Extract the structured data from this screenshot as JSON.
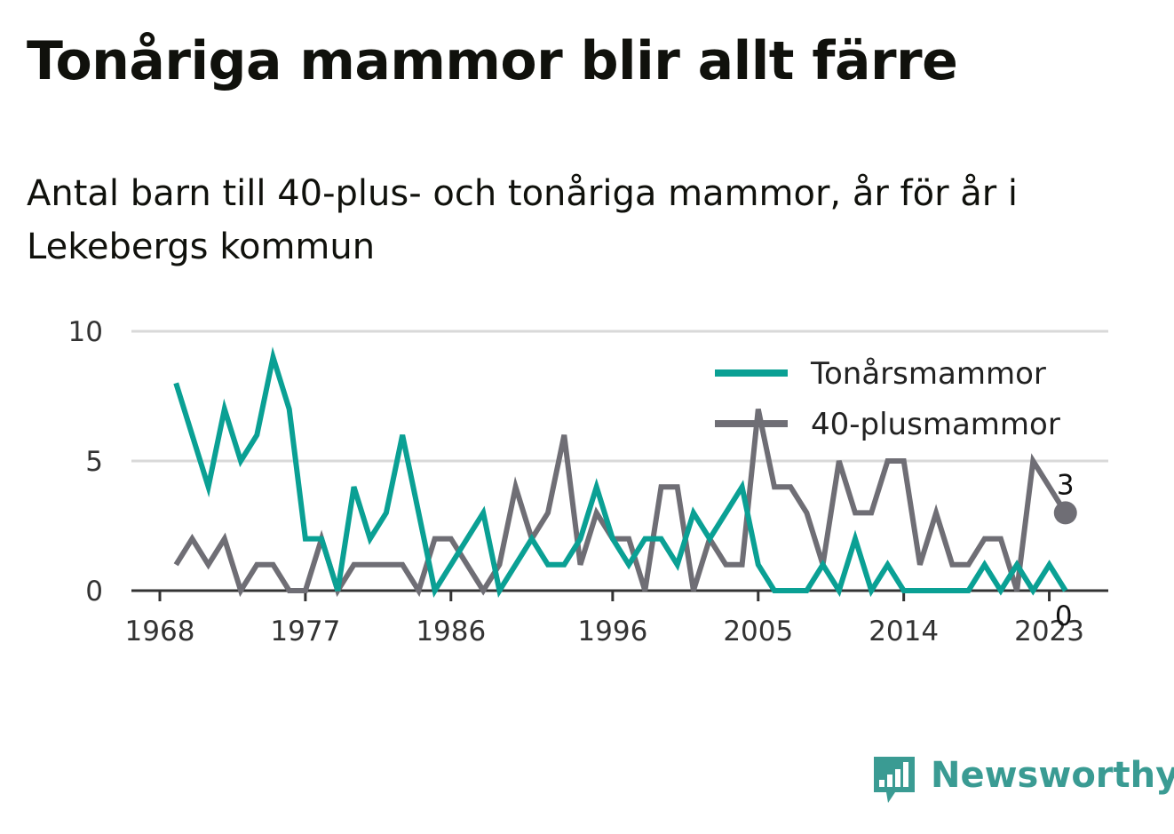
{
  "title": "Tonåriga mammor blir allt färre",
  "subtitle": "Antal barn till 40-plus- och tonåriga mammor, år för år i Lekebergs kommun",
  "brand": "Newsworthy",
  "colors": {
    "teen": "#0aa094",
    "forty": "#6f6e75",
    "grid": "#d9d9d9",
    "axis": "#333333",
    "brand": "#3a9b93"
  },
  "chart_data": {
    "type": "line",
    "title": "Tonåriga mammor blir allt färre",
    "subtitle": "Antal barn till 40-plus- och tonåriga mammor, år för år i Lekebergs kommun",
    "x": [
      1969,
      1970,
      1971,
      1972,
      1973,
      1974,
      1975,
      1976,
      1977,
      1978,
      1979,
      1980,
      1981,
      1982,
      1983,
      1984,
      1985,
      1986,
      1987,
      1988,
      1989,
      1990,
      1991,
      1992,
      1993,
      1994,
      1995,
      1996,
      1997,
      1998,
      1999,
      2000,
      2001,
      2002,
      2003,
      2004,
      2005,
      2006,
      2007,
      2008,
      2009,
      2010,
      2011,
      2012,
      2013,
      2014,
      2015,
      2016,
      2017,
      2018,
      2019,
      2020,
      2021,
      2022,
      2023,
      2024
    ],
    "xticks": [
      "1968",
      "1977",
      "1986",
      "1996",
      "2005",
      "2014",
      "2023"
    ],
    "yticks": [
      "0",
      "5",
      "10"
    ],
    "ylim": [
      0,
      10
    ],
    "grid": true,
    "legend_position": "top-right",
    "series": [
      {
        "name": "Tonårsmammor",
        "color": "#0aa094",
        "values": [
          8,
          6,
          4,
          7,
          5,
          6,
          9,
          7,
          2,
          2,
          0,
          4,
          2,
          3,
          6,
          3,
          0,
          1,
          2,
          3,
          0,
          1,
          2,
          1,
          1,
          2,
          4,
          2,
          1,
          2,
          2,
          1,
          3,
          2,
          3,
          4,
          1,
          0,
          0,
          0,
          1,
          0,
          2,
          0,
          1,
          0,
          0,
          0,
          0,
          0,
          1,
          0,
          1,
          0,
          1,
          0
        ],
        "end_label": "0"
      },
      {
        "name": "40-plusmammor",
        "color": "#6f6e75",
        "values": [
          1,
          2,
          1,
          2,
          0,
          1,
          1,
          0,
          0,
          2,
          0,
          1,
          1,
          1,
          1,
          0,
          2,
          2,
          1,
          0,
          1,
          4,
          2,
          3,
          6,
          1,
          3,
          2,
          2,
          0,
          4,
          4,
          0,
          2,
          1,
          1,
          7,
          4,
          4,
          3,
          1,
          5,
          3,
          3,
          5,
          5,
          1,
          3,
          1,
          1,
          2,
          2,
          0,
          5,
          4,
          3
        ],
        "end_label": "3"
      }
    ]
  }
}
